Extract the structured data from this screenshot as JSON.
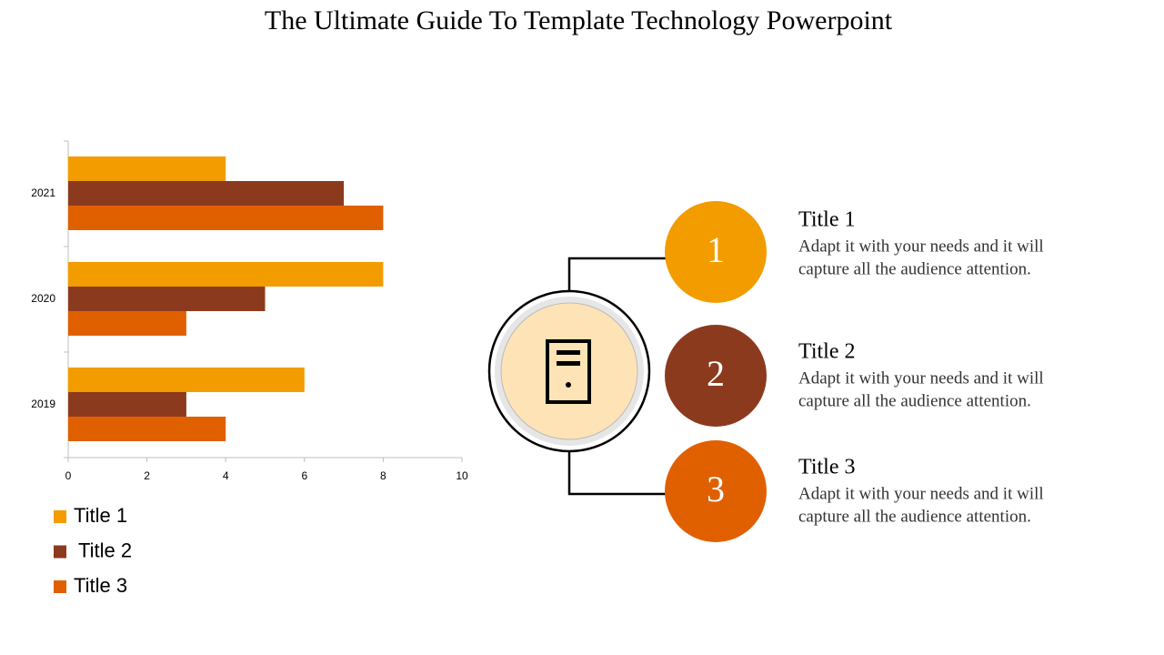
{
  "title": "The Ultimate Guide To Template Technology Powerpoint",
  "chart_data": {
    "type": "bar",
    "orientation": "horizontal",
    "categories": [
      "2019",
      "2020",
      "2021"
    ],
    "series": [
      {
        "name": "Title 1",
        "color": "#f29c00",
        "values": [
          6,
          8,
          4
        ]
      },
      {
        "name": "Title 2",
        "color": "#8c3a1e",
        "values": [
          3,
          5,
          7
        ]
      },
      {
        "name": "Title 3",
        "color": "#e06000",
        "values": [
          4,
          3,
          8
        ]
      }
    ],
    "xlim": [
      0,
      10
    ],
    "xticks": [
      0,
      2,
      4,
      6,
      8,
      10
    ],
    "legend": "bottom-left"
  },
  "items": [
    {
      "number": "1",
      "title": "Title 1",
      "lines": [
        "Adapt it with your needs and it will",
        "capture all the audience attention."
      ],
      "color": "#f29c00"
    },
    {
      "number": "2",
      "title": "Title 2",
      "lines": [
        "Adapt it with your needs and it will",
        "capture all the audience attention."
      ],
      "color": "#8c3a1e"
    },
    {
      "number": "3",
      "title": "Title 3",
      "lines": [
        "Adapt it with your needs and it will",
        "capture all the audience attention."
      ],
      "color": "#e06000"
    }
  ]
}
